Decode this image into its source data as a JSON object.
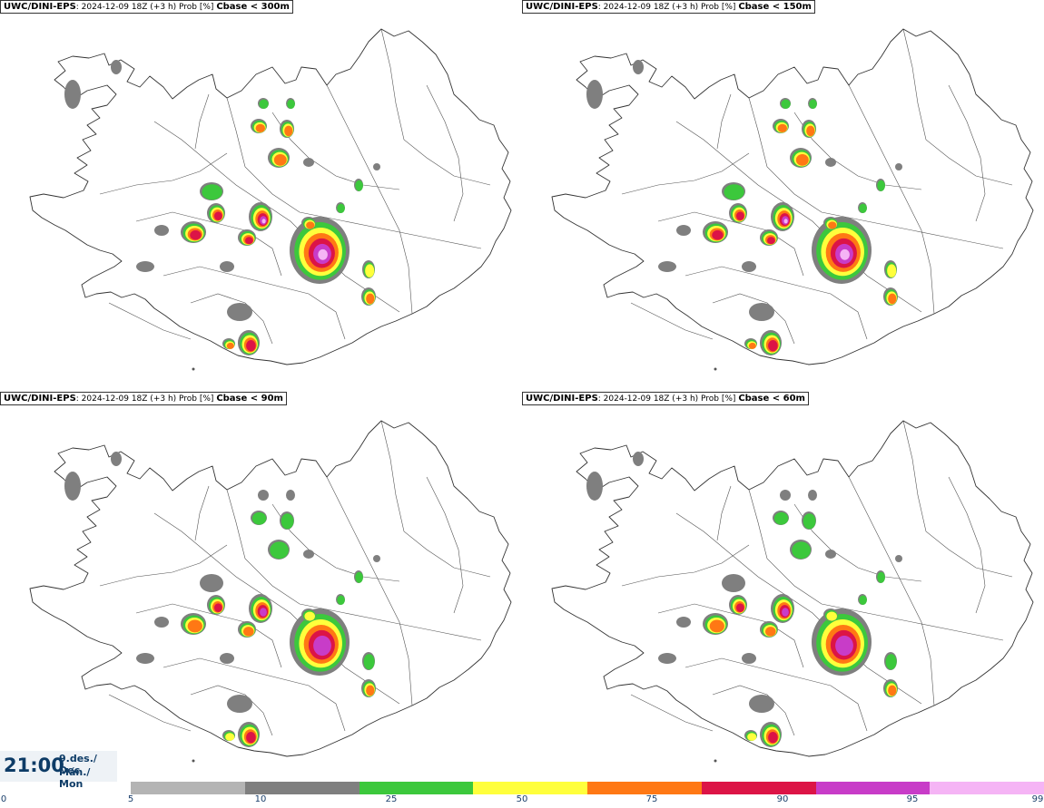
{
  "panels": [
    {
      "model": "UWC/DINI-EPS",
      "info": ": 2024-12-09 18Z (+3 h) Prob [%] ",
      "threshold": "Cbase < 300m",
      "level": 3
    },
    {
      "model": "UWC/DINI-EPS",
      "info": ": 2024-12-09 18Z (+3 h) Prob [%] ",
      "threshold": "Cbase < 150m",
      "level": 2
    },
    {
      "model": "UWC/DINI-EPS",
      "info": ": 2024-12-09 18Z (+3 h) Prob [%] ",
      "threshold": "Cbase < 90m",
      "level": 1
    },
    {
      "model": "UWC/DINI-EPS",
      "info": ": 2024-12-09 18Z (+3 h) Prob [%] ",
      "threshold": "Cbase < 60m",
      "level": 0
    }
  ],
  "time_box": {
    "hour": "21:00",
    "date_line1": "9.des./ Dec",
    "date_line2": "Mán./ Mon"
  },
  "colorbar": {
    "ticks": [
      "0",
      "5",
      "10",
      "25",
      "50",
      "75",
      "90",
      "95",
      "99"
    ],
    "colors": [
      "#ffffff",
      "#b4b4b4",
      "#7f7f7f",
      "#3cc83c",
      "#ffff3c",
      "#ff7814",
      "#dc1446",
      "#c83cc8",
      "#f5b4f5"
    ]
  }
}
